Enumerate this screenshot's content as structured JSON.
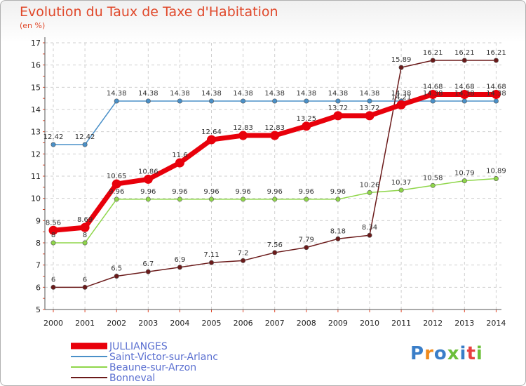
{
  "chart_data": {
    "type": "line",
    "title": "Evolution du Taux de Taxe d'Habitation",
    "subtitle": "(en %)",
    "categories": [
      "2000",
      "2001",
      "2002",
      "2003",
      "2004",
      "2005",
      "2006",
      "2007",
      "2008",
      "2009",
      "2010",
      "2011",
      "2012",
      "2013",
      "2014"
    ],
    "ylim": [
      5,
      17
    ],
    "yticks": [
      5,
      6,
      7,
      8,
      9,
      10,
      11,
      12,
      13,
      14,
      15,
      16,
      17
    ],
    "grid": true,
    "legend_position": "bottom-left",
    "series": [
      {
        "name": "JULLIANGES",
        "color": "#e8000b",
        "width": "thick",
        "values": [
          8.56,
          8.69,
          10.65,
          10.86,
          11.6,
          12.64,
          12.83,
          12.83,
          13.25,
          13.72,
          13.72,
          14.21,
          14.68,
          14.68,
          14.68
        ]
      },
      {
        "name": "Saint-Victor-sur-Arlanc",
        "color": "#4a90c8",
        "width": "thin",
        "values": [
          12.42,
          12.42,
          14.38,
          14.38,
          14.38,
          14.38,
          14.38,
          14.38,
          14.38,
          14.38,
          14.38,
          14.38,
          14.38,
          14.38,
          14.38
        ]
      },
      {
        "name": "Beaune-sur-Arzon",
        "color": "#8fd64a",
        "width": "thin",
        "values": [
          8,
          8,
          9.96,
          9.96,
          9.96,
          9.96,
          9.96,
          9.96,
          9.96,
          9.96,
          10.26,
          10.37,
          10.58,
          10.79,
          10.89
        ]
      },
      {
        "name": "Bonneval",
        "color": "#6b1a1a",
        "width": "thin",
        "values": [
          6,
          6,
          6.5,
          6.7,
          6.9,
          7.11,
          7.2,
          7.56,
          7.79,
          8.18,
          8.34,
          15.89,
          16.21,
          16.21,
          16.21
        ]
      }
    ],
    "data_labels": {
      "JULLIANGES": [
        "8.56",
        "8.69",
        "10.65",
        "10.86",
        "11.6",
        "12.64",
        "12.83",
        "12.83",
        "13.25",
        "13.72",
        "13.72",
        "14.21",
        "14.68",
        "14.68",
        "14.68"
      ],
      "Saint-Victor-sur-Arlanc": [
        "12.42",
        "12.42",
        "14.38",
        "14.38",
        "14.38",
        "14.38",
        "14.38",
        "14.38",
        "14.38",
        "14.38",
        "14.38",
        "14.38",
        "14.38",
        "14.38",
        "14.38"
      ],
      "Beaune-sur-Arzon": [
        "8",
        "8",
        "9.96",
        "9.96",
        "9.96",
        "9.96",
        "9.96",
        "9.96",
        "9.96",
        "9.96",
        "10.26",
        "10.37",
        "10.58",
        "10.79",
        "10.89"
      ],
      "Bonneval": [
        "6",
        "6",
        "6.5",
        "6.7",
        "6.9",
        "7.11",
        "7.2",
        "7.56",
        "7.79",
        "8.18",
        "8.34",
        "15.89",
        "16.21",
        "16.21",
        "16.21"
      ]
    }
  },
  "brand": {
    "logo_text": "Proxiti",
    "colors": [
      "#3a7ec8",
      "#f08a1c",
      "#3a7ec8",
      "#6cbf3a",
      "#3a7ec8",
      "#e84040",
      "#6cbf3a"
    ]
  }
}
